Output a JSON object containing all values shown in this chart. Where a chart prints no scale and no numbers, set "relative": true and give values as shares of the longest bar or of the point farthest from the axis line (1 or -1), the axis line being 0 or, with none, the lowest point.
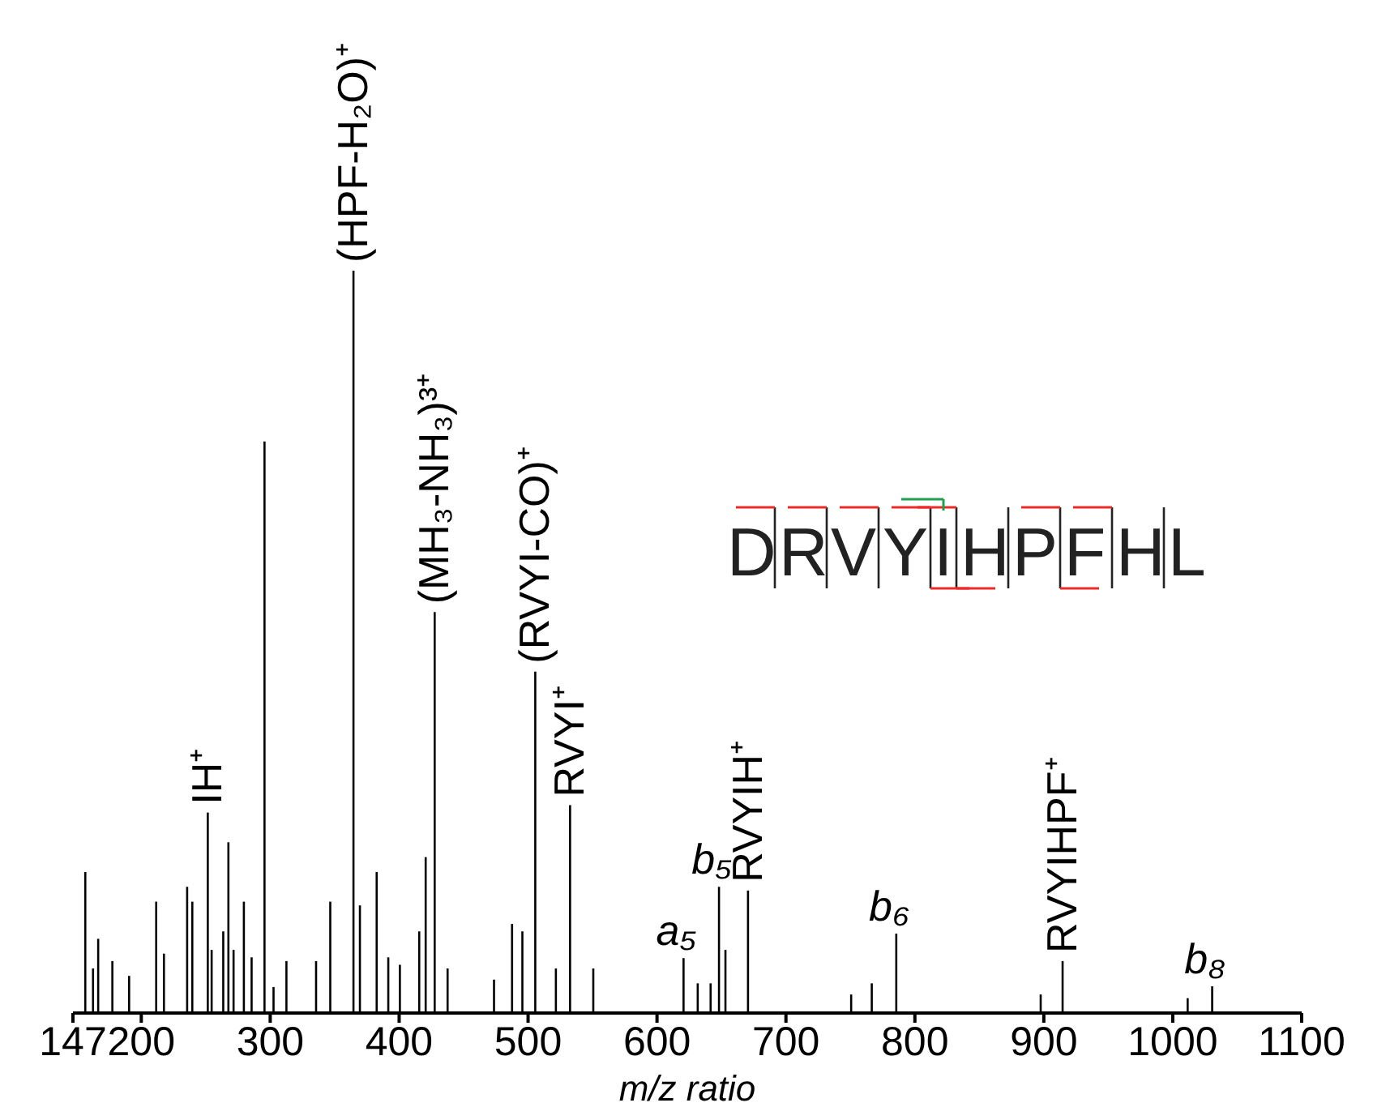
{
  "chart_data": {
    "type": "bar",
    "relative": true,
    "color": "#000000",
    "x": [
      156,
      162,
      166,
      177,
      190,
      211,
      217,
      235,
      239,
      251,
      254,
      263,
      267,
      271,
      279,
      285,
      295,
      302,
      312,
      335,
      346,
      364,
      369,
      382,
      391,
      400,
      415,
      420,
      427,
      437,
      473,
      487,
      495,
      505,
      521,
      532,
      550,
      620,
      631,
      641,
      647.5,
      652.5,
      670,
      750,
      766,
      785,
      897,
      914,
      1011,
      1030
    ],
    "values": [
      0.19,
      0.06,
      0.1,
      0.07,
      0.05,
      0.15,
      0.08,
      0.17,
      0.15,
      0.27,
      0.085,
      0.11,
      0.23,
      0.085,
      0.15,
      0.075,
      0.77,
      0.035,
      0.07,
      0.07,
      0.15,
      1,
      0.145,
      0.19,
      0.075,
      0.065,
      0.11,
      0.21,
      0.54,
      0.06,
      0.045,
      0.12,
      0.11,
      0.46,
      0.06,
      0.28,
      0.06,
      0.074,
      0.04,
      0.04,
      0.17,
      0.085,
      0.165,
      0.025,
      0.04,
      0.107,
      0.025,
      0.07,
      0.02,
      0.036
    ],
    "xlim": [
      147,
      1100
    ],
    "xticks": [
      147,
      200,
      300,
      400,
      500,
      600,
      700,
      800,
      900,
      1000,
      1100
    ],
    "xlabel": "m/z ratio",
    "annotations": [
      {
        "text": "(HPF-H₂O)⁺",
        "x": 364,
        "y": 1
      },
      {
        "text": "(MH₃-NH₃)³⁺",
        "x": 427,
        "y": 0.54
      },
      {
        "text": "(RVYI-CO)⁺",
        "x": 505,
        "y": 0.46
      },
      {
        "text": "RVYI⁺",
        "x": 532,
        "y": 0.28
      },
      {
        "text": "IH⁺",
        "x": 251,
        "y": 0.27
      },
      {
        "text": "RVYIH⁺",
        "x": 670,
        "y": 0.165
      },
      {
        "text": "RVYIHPF⁺",
        "x": 914,
        "y": 0.07
      },
      {
        "text": "a₅",
        "x": 620,
        "y": 0.074
      },
      {
        "text": "b₅",
        "x": 647.5,
        "y": 0.17
      },
      {
        "text": "b₆",
        "x": 785,
        "y": 0.107
      },
      {
        "text": "b₈",
        "x": 1030,
        "y": 0.036
      },
      "DRVYIHPFHL"
    ]
  }
}
